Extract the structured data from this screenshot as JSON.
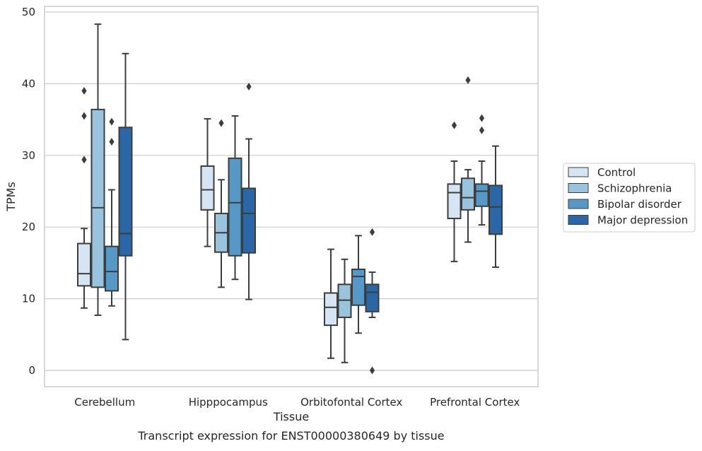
{
  "chart_data": {
    "type": "boxplot",
    "title": "",
    "caption": "Transcript expression for ENST00000380649 by tissue",
    "xlabel": "Tissue",
    "ylabel": "TPMs",
    "ylim": [
      -2.3,
      50.8
    ],
    "yticks": [
      0,
      10,
      20,
      30,
      40,
      50
    ],
    "grid": "horizontal",
    "legend_position": "outside-right",
    "categories": [
      "Cerebellum",
      "Hipppocampus",
      "Orbitofontal Cortex",
      "Prefrontal Cortex"
    ],
    "series": [
      {
        "name": "Control",
        "color": "#d6e5f3",
        "boxes": [
          {
            "whisker_low": 8.7,
            "q1": 11.8,
            "median": 13.5,
            "q3": 17.7,
            "whisker_high": 19.8,
            "outliers": [
              29.4,
              35.5,
              39.0
            ]
          },
          {
            "whisker_low": 17.3,
            "q1": 22.4,
            "median": 25.2,
            "q3": 28.5,
            "whisker_high": 35.1,
            "outliers": []
          },
          {
            "whisker_low": 1.7,
            "q1": 6.3,
            "median": 8.8,
            "q3": 10.8,
            "whisker_high": 16.9,
            "outliers": []
          },
          {
            "whisker_low": 15.2,
            "q1": 21.2,
            "median": 24.8,
            "q3": 26.0,
            "whisker_high": 29.2,
            "outliers": [
              34.2
            ]
          }
        ]
      },
      {
        "name": "Schizophrenia",
        "color": "#9ac3de",
        "boxes": [
          {
            "whisker_low": 7.7,
            "q1": 11.6,
            "median": 22.7,
            "q3": 36.4,
            "whisker_high": 48.3,
            "outliers": []
          },
          {
            "whisker_low": 11.6,
            "q1": 16.5,
            "median": 19.2,
            "q3": 21.9,
            "whisker_high": 26.6,
            "outliers": [
              34.5
            ]
          },
          {
            "whisker_low": 1.1,
            "q1": 7.4,
            "median": 9.8,
            "q3": 12.0,
            "whisker_high": 15.5,
            "outliers": []
          },
          {
            "whisker_low": 17.9,
            "q1": 22.4,
            "median": 24.1,
            "q3": 26.8,
            "whisker_high": 28.0,
            "outliers": [
              40.5
            ]
          }
        ]
      },
      {
        "name": "Bipolar disorder",
        "color": "#5699c6",
        "boxes": [
          {
            "whisker_low": 9.0,
            "q1": 11.1,
            "median": 13.8,
            "q3": 17.3,
            "whisker_high": 25.2,
            "outliers": [
              31.9,
              34.7
            ]
          },
          {
            "whisker_low": 12.7,
            "q1": 16.0,
            "median": 23.4,
            "q3": 29.6,
            "whisker_high": 35.5,
            "outliers": []
          },
          {
            "whisker_low": 5.2,
            "q1": 9.1,
            "median": 13.1,
            "q3": 14.1,
            "whisker_high": 18.8,
            "outliers": []
          },
          {
            "whisker_low": 20.3,
            "q1": 22.9,
            "median": 25.0,
            "q3": 26.0,
            "whisker_high": 29.2,
            "outliers": [
              33.5,
              35.2
            ]
          }
        ]
      },
      {
        "name": "Major depression",
        "color": "#2b67a6",
        "boxes": [
          {
            "whisker_low": 4.3,
            "q1": 16.0,
            "median": 19.1,
            "q3": 33.9,
            "whisker_high": 44.2,
            "outliers": []
          },
          {
            "whisker_low": 9.9,
            "q1": 16.4,
            "median": 21.9,
            "q3": 25.4,
            "whisker_high": 32.3,
            "outliers": [
              39.6
            ]
          },
          {
            "whisker_low": 7.4,
            "q1": 8.2,
            "median": 10.9,
            "q3": 12.0,
            "whisker_high": 13.7,
            "outliers": [
              0.0,
              19.3
            ]
          },
          {
            "whisker_low": 14.4,
            "q1": 19.0,
            "median": 22.8,
            "q3": 25.8,
            "whisker_high": 31.3,
            "outliers": []
          }
        ]
      }
    ]
  }
}
